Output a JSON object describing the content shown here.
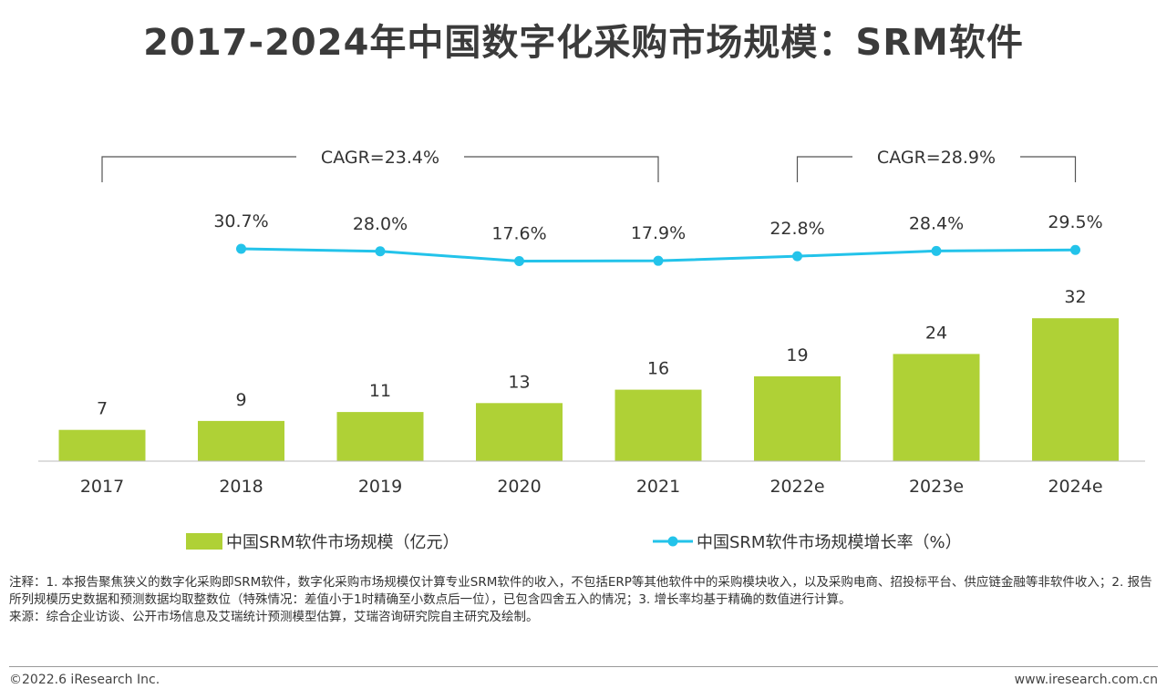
{
  "title": "2017-2024年中国数字化采购市场规模：SRM软件",
  "colors": {
    "bar": "#afd136",
    "line": "#23c3ea",
    "bracket": "#555555",
    "axis": "#bbbbbb"
  },
  "cagr": [
    {
      "label": "CAGR=23.4%",
      "from_index": 0,
      "to_index": 4
    },
    {
      "label": "CAGR=28.9%",
      "from_index": 5,
      "to_index": 7
    }
  ],
  "chart_data": {
    "type": "bar",
    "categories": [
      "2017",
      "2018",
      "2019",
      "2020",
      "2021",
      "2022e",
      "2023e",
      "2024e"
    ],
    "series": [
      {
        "name": "中国SRM软件市场规模（亿元）",
        "type": "bar",
        "values": [
          7,
          9,
          11,
          13,
          16,
          19,
          24,
          32
        ],
        "labels": [
          "7",
          "9",
          "11",
          "13",
          "16",
          "19",
          "24",
          "32"
        ]
      },
      {
        "name": "中国SRM软件市场规模增长率（%）",
        "type": "line",
        "values": [
          null,
          30.7,
          28.0,
          17.6,
          17.9,
          22.8,
          28.4,
          29.5
        ],
        "labels": [
          "",
          "30.7%",
          "28.0%",
          "17.6%",
          "17.9%",
          "22.8%",
          "28.4%",
          "29.5%"
        ]
      }
    ]
  },
  "legend": {
    "bar_label": "中国SRM软件市场规模（亿元）",
    "line_label": "中国SRM软件市场规模增长率（%）"
  },
  "notes": {
    "note": "注释：1. 本报告聚焦狭义的数字化采购即SRM软件，数字化采购市场规模仅计算专业SRM软件的收入，不包括ERP等其他软件中的采购模块收入，以及采购电商、招投标平台、供应链金融等非软件收入；2. 报告所列规模历史数据和预测数据均取整数位（特殊情况：差值小于1时精确至小数点后一位），已包含四舍五入的情况；3. 增长率均基于精确的数值进行计算。",
    "source": "来源：综合企业访谈、公开市场信息及艾瑞统计预测模型估算，艾瑞咨询研究院自主研究及绘制。"
  },
  "footer": {
    "copyright": "©2022.6 iResearch Inc.",
    "website": "www.iresearch.com.cn"
  }
}
